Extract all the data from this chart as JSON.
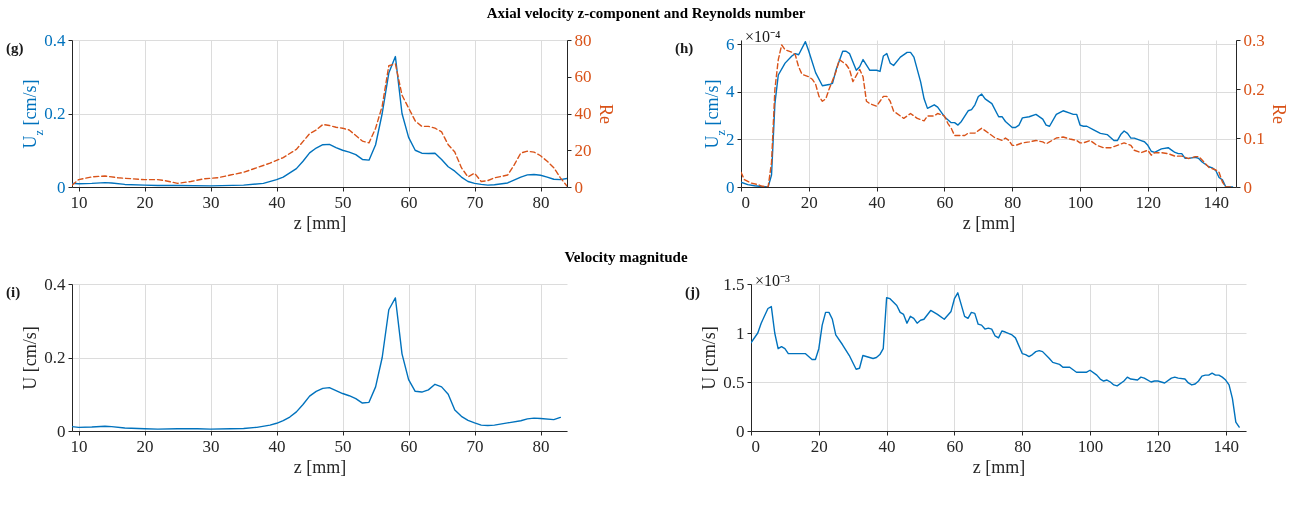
{
  "chart_data": [
    {
      "type": "line",
      "title": "Axial velocity z-component and Reynolds number",
      "xlabel": "z [mm]",
      "ylabel": "U$_{z}$ [cm/s]",
      "y2label": "Re",
      "annotations": [
        "(g)"
      ],
      "xlim": [
        9,
        84
      ],
      "xticks": [
        10,
        20,
        30,
        40,
        50,
        60,
        70,
        80
      ],
      "ylim": [
        0,
        0.4
      ],
      "yticks": [
        0,
        0.2,
        0.4
      ],
      "y2lim": [
        0,
        80
      ],
      "y2ticks": [
        0,
        20,
        40,
        60,
        80
      ],
      "grid": true,
      "series": [
        {
          "color": "#0072bd",
          "x": [
            9,
            10,
            12,
            14,
            15,
            17,
            20,
            22,
            25,
            30,
            35,
            38,
            40,
            41,
            43,
            44,
            45,
            46,
            47,
            48,
            49,
            50,
            51,
            52,
            53,
            54,
            55,
            56,
            57,
            58,
            59,
            60,
            61,
            62,
            63,
            64,
            65,
            66,
            67,
            68,
            69,
            70,
            71,
            72,
            73,
            75,
            77,
            78,
            79,
            80,
            81,
            82,
            83,
            84
          ],
          "values": [
            0.01,
            0.009,
            0.01,
            0.012,
            0.011,
            0.007,
            0.005,
            0.004,
            0.004,
            0.003,
            0.005,
            0.01,
            0.02,
            0.027,
            0.05,
            0.07,
            0.093,
            0.106,
            0.115,
            0.116,
            0.107,
            0.1,
            0.095,
            0.088,
            0.075,
            0.073,
            0.115,
            0.2,
            0.31,
            0.355,
            0.2,
            0.135,
            0.1,
            0.092,
            0.091,
            0.092,
            0.075,
            0.055,
            0.043,
            0.027,
            0.015,
            0.01,
            0.007,
            0.005,
            0.006,
            0.011,
            0.027,
            0.033,
            0.034,
            0.032,
            0.027,
            0.021,
            0.02,
            0.023
          ]
        },
        {
          "color": "#d95319",
          "axis": "y2",
          "line_style": "dashed",
          "x": [
            9,
            10,
            12,
            14,
            16,
            18,
            20,
            22,
            23,
            25,
            27,
            29,
            31,
            33,
            35,
            37,
            39,
            41,
            43,
            45,
            46,
            47,
            48,
            49,
            50,
            51,
            52,
            53,
            54,
            55,
            56,
            57,
            58,
            59,
            60,
            61,
            62,
            63,
            64,
            65,
            66,
            67,
            68,
            69,
            70,
            71,
            72,
            73,
            75,
            76,
            77,
            78,
            79,
            80,
            81,
            82,
            83,
            84
          ],
          "values": [
            1,
            4,
            5.5,
            6,
            5,
            4.5,
            4,
            4,
            3.5,
            2,
            3,
            4.5,
            5,
            6.5,
            8,
            10.5,
            13,
            16,
            20.5,
            29,
            31,
            34,
            33.5,
            32.5,
            32,
            31,
            28,
            25,
            24,
            32,
            44,
            66,
            67,
            50,
            43,
            36,
            33,
            33,
            32,
            30,
            23,
            19,
            10.5,
            5.5,
            7.5,
            3,
            3.5,
            5,
            6.5,
            12,
            18.5,
            19.5,
            19,
            17,
            14,
            10.5,
            5,
            0.5
          ]
        }
      ]
    },
    {
      "type": "line",
      "xlabel": "z [mm]",
      "ylabel": "U$_{z}$ [cm/s]",
      "y2label": "Re",
      "annotations": [
        "(h)",
        "×10⁻⁴"
      ],
      "xlim": [
        0,
        146
      ],
      "xticks": [
        0,
        20,
        40,
        60,
        80,
        100,
        120,
        140
      ],
      "ylim": [
        0,
        6.17
      ],
      "yticks": [
        0,
        2,
        4,
        6
      ],
      "y2lim": [
        0,
        0.3
      ],
      "y2ticks": [
        0,
        0.1,
        0.2,
        0.3
      ],
      "grid": true,
      "series": [
        {
          "color": "#0072bd",
          "x": [
            0,
            2,
            4,
            6,
            8,
            9,
            10,
            11,
            13,
            15,
            16,
            17,
            19,
            20,
            22,
            24,
            26,
            27,
            28,
            30,
            31,
            32,
            34,
            35,
            36,
            38,
            40,
            41,
            42,
            43,
            44,
            45,
            47,
            49,
            50,
            51,
            53,
            54,
            55,
            57,
            58,
            60,
            62,
            63,
            64,
            65,
            67,
            68,
            69,
            70,
            71,
            72,
            74,
            76,
            77,
            78,
            80,
            81,
            82,
            83,
            85,
            87,
            89,
            90,
            91,
            93,
            95,
            97,
            98,
            99,
            100,
            101,
            102,
            104,
            106,
            108,
            110,
            111,
            112,
            113,
            114,
            115,
            116,
            118,
            119,
            120,
            121,
            122,
            124,
            126,
            127,
            128,
            129,
            130,
            131,
            132,
            134,
            135,
            136,
            138,
            139,
            140,
            141,
            142,
            143,
            145
          ],
          "values": [
            0.2,
            0.1,
            0.05,
            0.02,
            0,
            0.5,
            3.5,
            4.7,
            5.2,
            5.5,
            5.6,
            5.55,
            6.1,
            5.7,
            4.8,
            4.25,
            4.3,
            4.35,
            4.9,
            5.7,
            5.7,
            5.6,
            4.9,
            5.05,
            5.35,
            4.9,
            4.9,
            4.85,
            5.5,
            5.6,
            5.2,
            5.1,
            5.45,
            5.65,
            5.65,
            5.45,
            4.4,
            3.7,
            3.3,
            3.45,
            3.35,
            2.95,
            2.7,
            2.7,
            2.6,
            2.75,
            3.2,
            3.25,
            3.45,
            3.8,
            3.9,
            3.7,
            3.5,
            2.95,
            2.95,
            2.75,
            2.5,
            2.5,
            2.6,
            2.9,
            2.95,
            3.05,
            2.85,
            2.6,
            2.55,
            3.05,
            3.2,
            3.1,
            3.05,
            3.05,
            2.6,
            2.55,
            2.55,
            2.4,
            2.25,
            2.2,
            1.95,
            1.95,
            2.2,
            2.35,
            2.25,
            2.05,
            2.05,
            1.95,
            1.9,
            1.75,
            1.5,
            1.45,
            1.6,
            1.65,
            1.55,
            1.45,
            1.4,
            1.4,
            1.2,
            1.2,
            1.25,
            1.2,
            1.05,
            0.85,
            0.8,
            0.7,
            0.4,
            0.3,
            0,
            0
          ]
        },
        {
          "color": "#d95319",
          "axis": "y2",
          "line_style": "dashed",
          "x": [
            0,
            1,
            3,
            5,
            6,
            8,
            9,
            10,
            11,
            12,
            13,
            15,
            16,
            17,
            18,
            20,
            21,
            22,
            23,
            24,
            25,
            26,
            28,
            29,
            31,
            32,
            33,
            35,
            36,
            37,
            38,
            40,
            41,
            42,
            43,
            44,
            45,
            47,
            48,
            49,
            50,
            52,
            54,
            55,
            57,
            58,
            60,
            61,
            62,
            63,
            64,
            66,
            67,
            69,
            70,
            71,
            72,
            74,
            75,
            77,
            78,
            79,
            80,
            81,
            83,
            85,
            87,
            89,
            90,
            91,
            93,
            95,
            97,
            99,
            100,
            101,
            103,
            104,
            105,
            107,
            109,
            111,
            113,
            115,
            116,
            118,
            120,
            121,
            122,
            124,
            126,
            128,
            130,
            132,
            134,
            135,
            136,
            138,
            140,
            141,
            142,
            143,
            145
          ],
          "values": [
            0.03,
            0.015,
            0.008,
            0.005,
            0.002,
            0,
            0.05,
            0.2,
            0.26,
            0.29,
            0.28,
            0.275,
            0.27,
            0.245,
            0.23,
            0.225,
            0.22,
            0.21,
            0.185,
            0.175,
            0.18,
            0.2,
            0.235,
            0.26,
            0.25,
            0.24,
            0.215,
            0.24,
            0.225,
            0.175,
            0.17,
            0.165,
            0.175,
            0.185,
            0.185,
            0.175,
            0.155,
            0.145,
            0.14,
            0.145,
            0.15,
            0.14,
            0.135,
            0.145,
            0.145,
            0.15,
            0.145,
            0.13,
            0.12,
            0.105,
            0.105,
            0.105,
            0.11,
            0.11,
            0.115,
            0.12,
            0.115,
            0.105,
            0.1,
            0.095,
            0.1,
            0.095,
            0.085,
            0.085,
            0.09,
            0.092,
            0.095,
            0.092,
            0.088,
            0.092,
            0.1,
            0.102,
            0.098,
            0.095,
            0.09,
            0.09,
            0.095,
            0.09,
            0.085,
            0.08,
            0.08,
            0.085,
            0.09,
            0.085,
            0.075,
            0.07,
            0.075,
            0.065,
            0.07,
            0.07,
            0.068,
            0.063,
            0.063,
            0.058,
            0.062,
            0.062,
            0.055,
            0.04,
            0.035,
            0.03,
            0.01,
            0,
            0
          ]
        }
      ]
    },
    {
      "type": "line",
      "title": "Velocity magnitude",
      "xlabel": "z [mm]",
      "ylabel": "U [cm/s]",
      "annotations": [
        "(i)"
      ],
      "xlim": [
        9,
        84
      ],
      "xticks": [
        10,
        20,
        30,
        40,
        50,
        60,
        70,
        80
      ],
      "ylim": [
        0,
        0.4
      ],
      "yticks": [
        0,
        0.2,
        0.4
      ],
      "grid": true,
      "x": [
        9,
        10,
        12,
        14,
        15,
        17,
        20,
        22,
        25,
        28,
        30,
        33,
        35,
        37,
        39,
        40,
        41,
        42,
        43,
        44,
        45,
        46,
        47,
        48,
        49,
        50,
        51,
        52,
        53,
        54,
        55,
        56,
        57,
        58,
        59,
        60,
        61,
        62,
        63,
        64,
        65,
        66,
        67,
        68,
        69,
        70,
        71,
        72,
        73,
        75,
        77,
        78,
        79,
        80,
        82,
        83
      ],
      "series": [
        {
          "color": "#0072bd",
          "values": [
            0.012,
            0.01,
            0.011,
            0.013,
            0.012,
            0.008,
            0.006,
            0.005,
            0.006,
            0.006,
            0.005,
            0.006,
            0.007,
            0.01,
            0.016,
            0.021,
            0.028,
            0.038,
            0.052,
            0.072,
            0.095,
            0.108,
            0.116,
            0.118,
            0.11,
            0.102,
            0.096,
            0.088,
            0.076,
            0.078,
            0.12,
            0.2,
            0.33,
            0.362,
            0.21,
            0.14,
            0.108,
            0.106,
            0.112,
            0.127,
            0.12,
            0.1,
            0.057,
            0.04,
            0.029,
            0.022,
            0.016,
            0.015,
            0.016,
            0.022,
            0.028,
            0.033,
            0.035,
            0.034,
            0.031,
            0.037
          ]
        }
      ]
    },
    {
      "type": "line",
      "xlabel": "z [mm]",
      "ylabel": "U [cm/s]",
      "annotations": [
        "(j)",
        "×10⁻³"
      ],
      "xlim": [
        0,
        146
      ],
      "xticks": [
        0,
        20,
        40,
        60,
        80,
        100,
        120,
        140
      ],
      "ylim": [
        0,
        1.5
      ],
      "yticks": [
        0,
        0.5,
        1,
        1.5
      ],
      "grid": true,
      "x": [
        0,
        2,
        3,
        5,
        6,
        7,
        8,
        9,
        10,
        11,
        13,
        16,
        18,
        19,
        20,
        21,
        22,
        23,
        24,
        25,
        27,
        29,
        31,
        32,
        33,
        34,
        36,
        37,
        38,
        39,
        40,
        41,
        43,
        44,
        45,
        46,
        47,
        48,
        49,
        50,
        51,
        53,
        55,
        57,
        59,
        60,
        61,
        63,
        64,
        65,
        66,
        67,
        68,
        69,
        70,
        71,
        72,
        73,
        74,
        75,
        77,
        78,
        80,
        81,
        82,
        83,
        84,
        85,
        86,
        88,
        89,
        91,
        92,
        94,
        96,
        98,
        99,
        100,
        102,
        103,
        104,
        105,
        106,
        107,
        108,
        110,
        111,
        112,
        114,
        115,
        116,
        118,
        119,
        120,
        122,
        124,
        125,
        126,
        128,
        129,
        130,
        131,
        132,
        133,
        134,
        135,
        136,
        137,
        138,
        139,
        140,
        141,
        142,
        143,
        144
      ],
      "series": [
        {
          "color": "#0072bd",
          "values": [
            0.9,
            1,
            1.1,
            1.25,
            1.27,
            1,
            0.84,
            0.86,
            0.84,
            0.79,
            0.79,
            0.79,
            0.73,
            0.73,
            0.84,
            1.08,
            1.21,
            1.21,
            1.14,
            0.98,
            0.88,
            0.77,
            0.63,
            0.64,
            0.77,
            0.76,
            0.74,
            0.75,
            0.78,
            0.84,
            1.36,
            1.35,
            1.28,
            1.21,
            1.19,
            1.1,
            1.17,
            1.15,
            1.1,
            1.13,
            1.14,
            1.23,
            1.19,
            1.14,
            1.22,
            1.35,
            1.41,
            1.17,
            1.15,
            1.21,
            1.2,
            1.09,
            1.08,
            1.04,
            1.05,
            1.04,
            0.97,
            0.95,
            1.02,
            1.01,
            0.98,
            0.95,
            0.79,
            0.78,
            0.76,
            0.78,
            0.81,
            0.82,
            0.81,
            0.74,
            0.7,
            0.68,
            0.65,
            0.65,
            0.6,
            0.6,
            0.6,
            0.62,
            0.57,
            0.53,
            0.51,
            0.52,
            0.5,
            0.47,
            0.46,
            0.51,
            0.55,
            0.53,
            0.52,
            0.55,
            0.54,
            0.5,
            0.51,
            0.51,
            0.49,
            0.54,
            0.55,
            0.54,
            0.53,
            0.49,
            0.47,
            0.48,
            0.51,
            0.56,
            0.57,
            0.57,
            0.59,
            0.57,
            0.57,
            0.55,
            0.52,
            0.47,
            0.33,
            0.09,
            0.04
          ]
        }
      ]
    }
  ]
}
